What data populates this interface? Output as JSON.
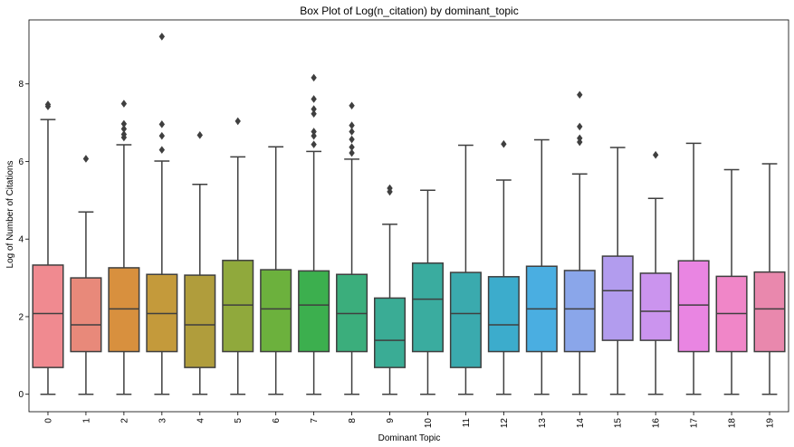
{
  "chart_data": {
    "type": "box",
    "title": "Box Plot of Log(n_citation) by dominant_topic",
    "xlabel": "Dominant Topic",
    "ylabel": "Log of Number of Citations",
    "ylim": [
      -0.45,
      9.65
    ],
    "yticks": [
      0,
      2,
      4,
      6,
      8
    ],
    "categories": [
      "0",
      "1",
      "2",
      "3",
      "4",
      "5",
      "6",
      "7",
      "8",
      "9",
      "10",
      "11",
      "12",
      "13",
      "14",
      "15",
      "16",
      "17",
      "18",
      "19"
    ],
    "colors": [
      "#f08a90",
      "#e8897a",
      "#d8903e",
      "#c49a3b",
      "#b09d3c",
      "#90a93c",
      "#6cb13d",
      "#3caf4e",
      "#3bae7c",
      "#3aac95",
      "#3aac9f",
      "#3aaaae",
      "#3caccc",
      "#4aaee1",
      "#8aa6ea",
      "#b29cee",
      "#cb94ee",
      "#e985e2",
      "#f086c8",
      "#e988ad"
    ],
    "boxes": [
      {
        "whisker_low": 0,
        "q1": 0.69,
        "median": 2.08,
        "q3": 3.33,
        "whisker_high": 7.08,
        "outliers": [
          7.42,
          7.47
        ]
      },
      {
        "whisker_low": 0,
        "q1": 1.1,
        "median": 1.79,
        "q3": 3.0,
        "whisker_high": 4.7,
        "outliers": [
          6.07
        ]
      },
      {
        "whisker_low": 0,
        "q1": 1.1,
        "median": 2.2,
        "q3": 3.26,
        "whisker_high": 6.43,
        "outliers": [
          6.62,
          6.7,
          6.84,
          6.97,
          7.49
        ]
      },
      {
        "whisker_low": 0,
        "q1": 1.1,
        "median": 2.08,
        "q3": 3.09,
        "whisker_high": 6.01,
        "outliers": [
          6.3,
          6.66,
          6.96,
          9.22
        ]
      },
      {
        "whisker_low": 0,
        "q1": 0.69,
        "median": 1.79,
        "q3": 3.07,
        "whisker_high": 5.41,
        "outliers": [
          6.68
        ]
      },
      {
        "whisker_low": 0,
        "q1": 1.1,
        "median": 2.3,
        "q3": 3.45,
        "whisker_high": 6.12,
        "outliers": [
          7.04
        ]
      },
      {
        "whisker_low": 0,
        "q1": 1.1,
        "median": 2.2,
        "q3": 3.21,
        "whisker_high": 6.38,
        "outliers": []
      },
      {
        "whisker_low": 0,
        "q1": 1.1,
        "median": 2.3,
        "q3": 3.18,
        "whisker_high": 6.26,
        "outliers": [
          6.44,
          6.66,
          6.77,
          7.23,
          7.35,
          7.61,
          8.16
        ]
      },
      {
        "whisker_low": 0,
        "q1": 1.1,
        "median": 2.08,
        "q3": 3.09,
        "whisker_high": 6.06,
        "outliers": [
          6.22,
          6.37,
          6.57,
          6.77,
          6.93,
          7.44
        ]
      },
      {
        "whisker_low": 0,
        "q1": 0.69,
        "median": 1.39,
        "q3": 2.48,
        "whisker_high": 4.38,
        "outliers": [
          5.22,
          5.31
        ]
      },
      {
        "whisker_low": 0,
        "q1": 1.1,
        "median": 2.45,
        "q3": 3.38,
        "whisker_high": 5.26,
        "outliers": []
      },
      {
        "whisker_low": 0,
        "q1": 0.69,
        "median": 2.08,
        "q3": 3.14,
        "whisker_high": 6.42,
        "outliers": []
      },
      {
        "whisker_low": 0,
        "q1": 1.1,
        "median": 1.79,
        "q3": 3.03,
        "whisker_high": 5.52,
        "outliers": [
          6.45
        ]
      },
      {
        "whisker_low": 0,
        "q1": 1.1,
        "median": 2.2,
        "q3": 3.3,
        "whisker_high": 6.56,
        "outliers": []
      },
      {
        "whisker_low": 0,
        "q1": 1.1,
        "median": 2.2,
        "q3": 3.19,
        "whisker_high": 5.68,
        "outliers": [
          6.5,
          6.6,
          6.9,
          7.72
        ]
      },
      {
        "whisker_low": 0,
        "q1": 1.39,
        "median": 2.67,
        "q3": 3.56,
        "whisker_high": 6.36,
        "outliers": []
      },
      {
        "whisker_low": 0,
        "q1": 1.39,
        "median": 2.14,
        "q3": 3.12,
        "whisker_high": 5.05,
        "outliers": [
          6.17
        ]
      },
      {
        "whisker_low": 0,
        "q1": 1.1,
        "median": 2.3,
        "q3": 3.44,
        "whisker_high": 6.47,
        "outliers": []
      },
      {
        "whisker_low": 0,
        "q1": 1.1,
        "median": 2.08,
        "q3": 3.04,
        "whisker_high": 5.79,
        "outliers": []
      },
      {
        "whisker_low": 0,
        "q1": 1.1,
        "median": 2.2,
        "q3": 3.15,
        "whisker_high": 5.94,
        "outliers": []
      }
    ]
  }
}
